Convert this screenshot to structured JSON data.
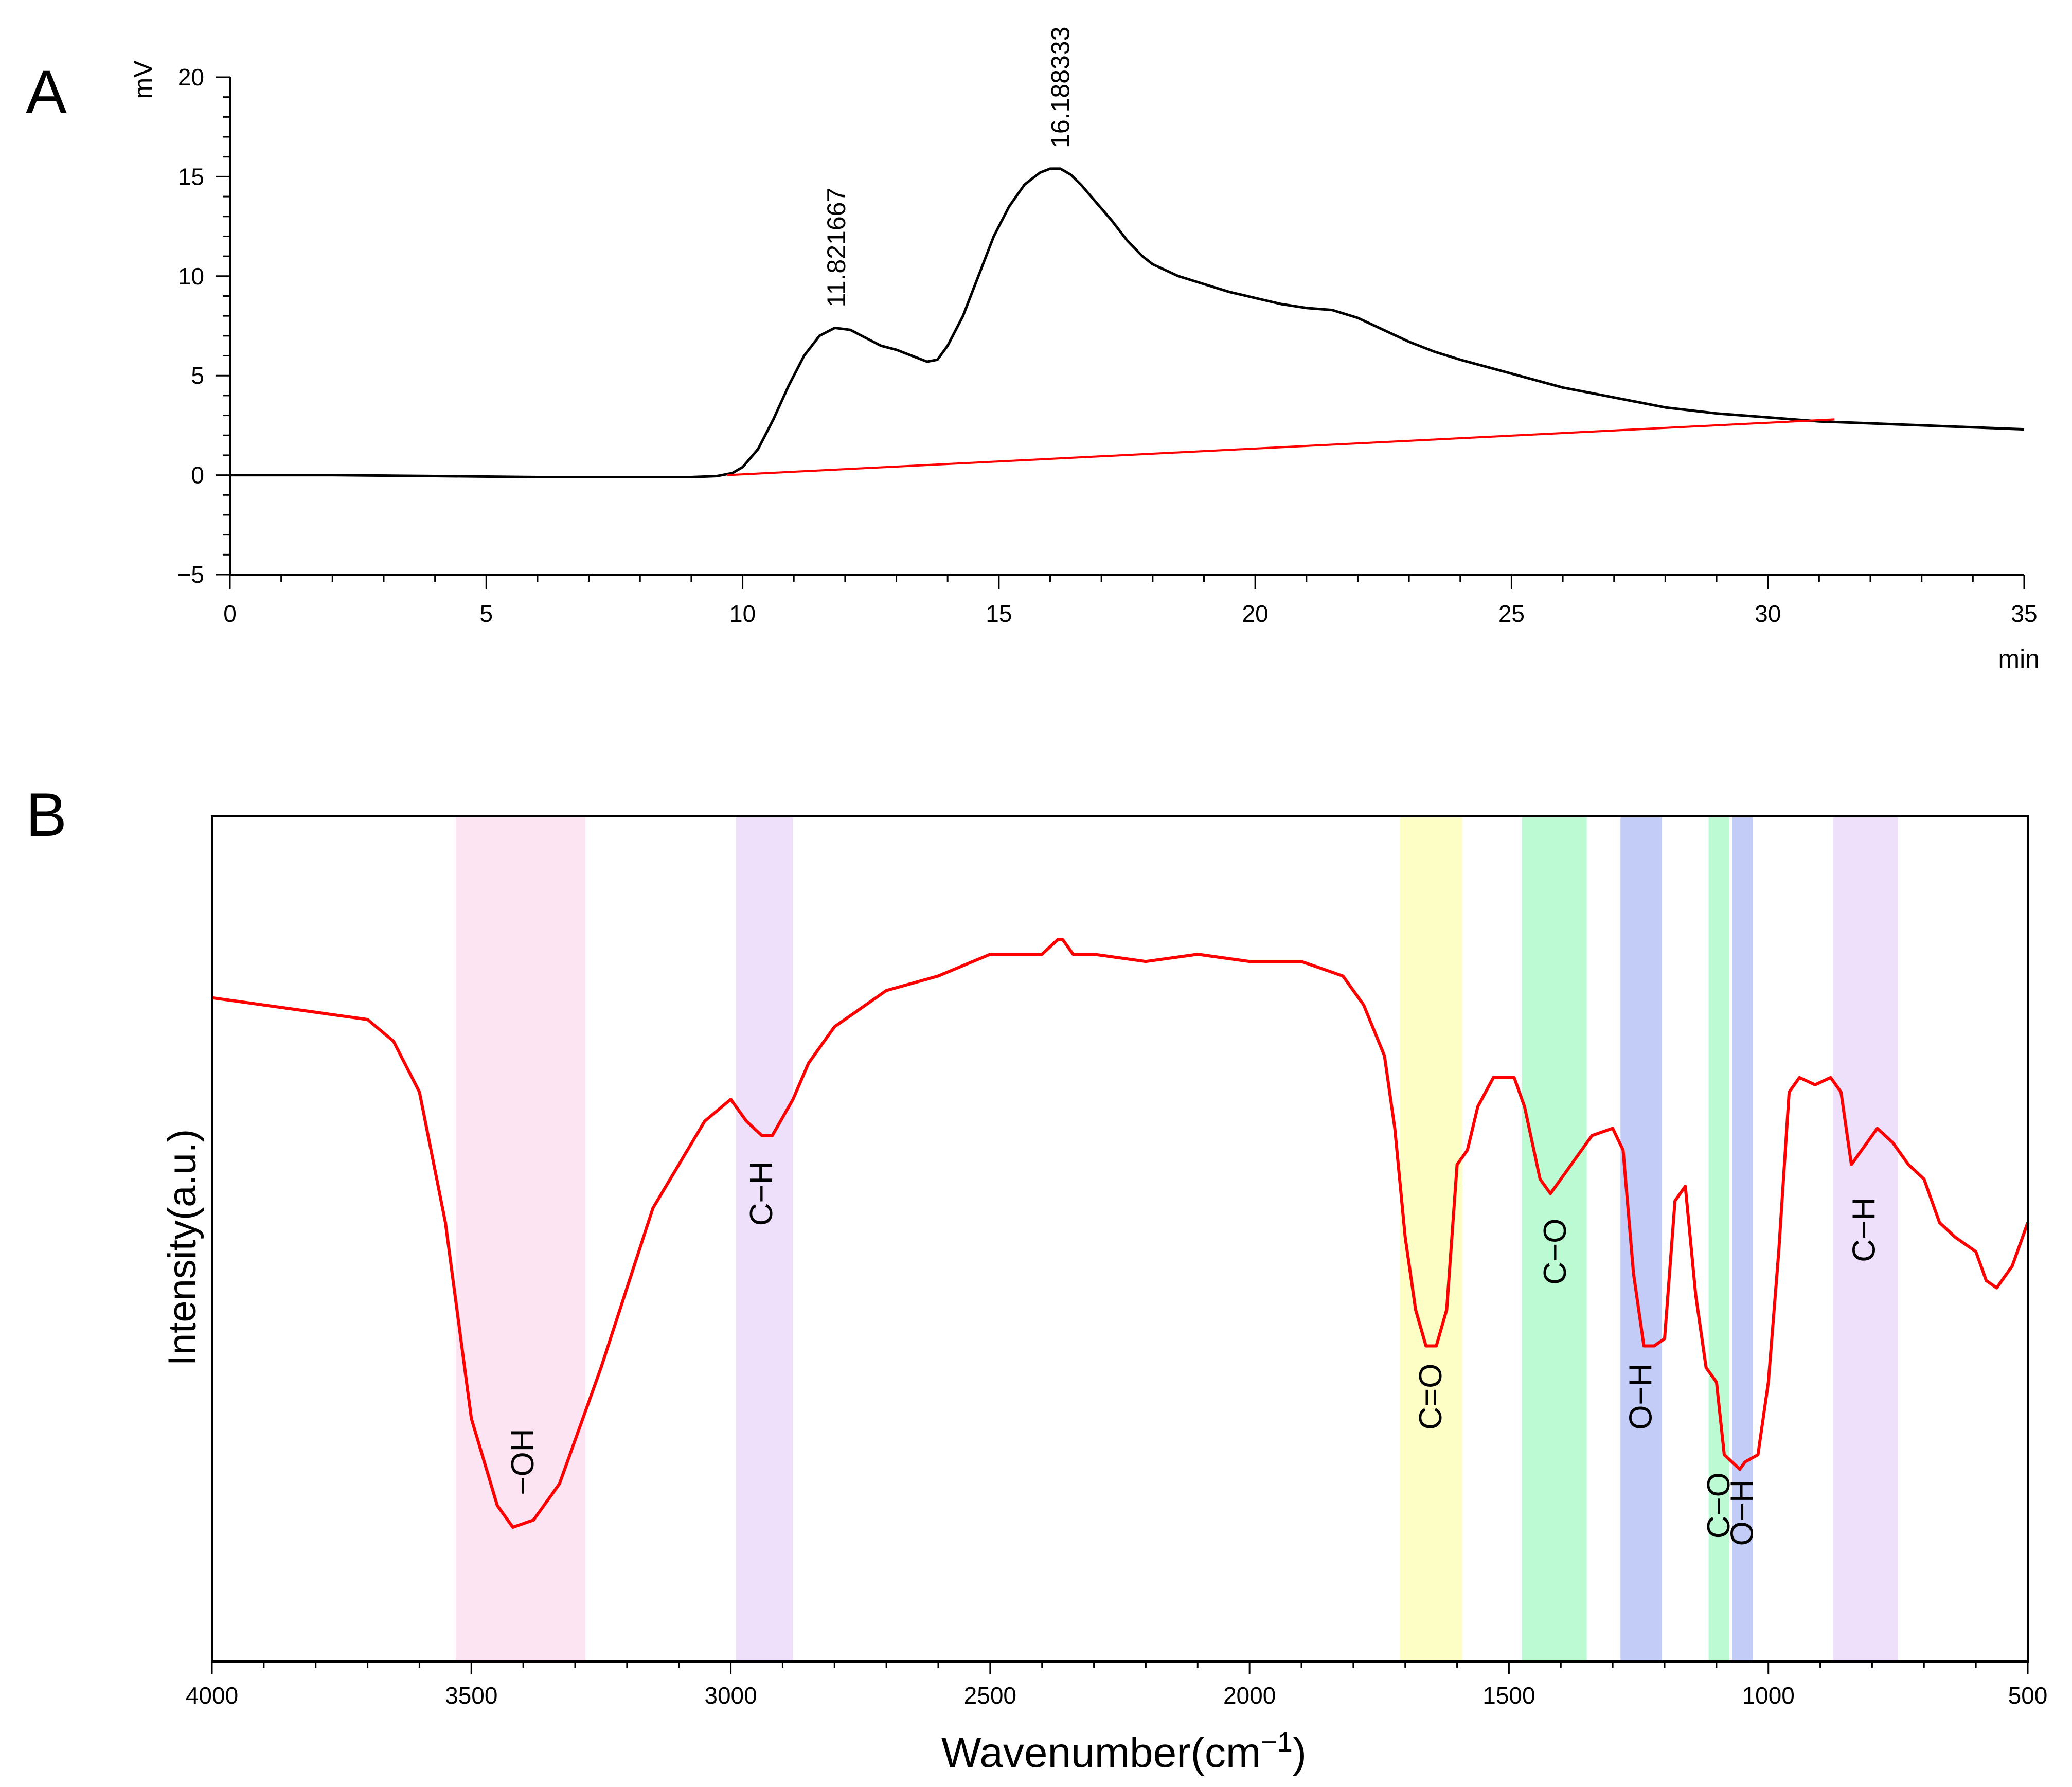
{
  "colors": {
    "axis": "#000000",
    "trace_a": "#000000",
    "baseline_a": "#ff0000",
    "trace_b": "#ff0000",
    "band_pink": "#fce4f3",
    "band_lavender": "#eedffb",
    "band_yellow": "#fdfdc6",
    "band_green": "#bcfad3",
    "band_blue": "#c3cbf7"
  },
  "chart_data": [
    {
      "panel": "A",
      "type": "line",
      "panel_label": "A",
      "title": "",
      "xlabel": "min",
      "ylabel": "mV",
      "xlim": [
        0,
        35
      ],
      "ylim": [
        -5,
        20
      ],
      "x_ticks": [
        0,
        5,
        10,
        15,
        20,
        25,
        30,
        35
      ],
      "x_tick_labels": [
        "0",
        "5",
        "10",
        "15",
        "20",
        "25",
        "30",
        "35"
      ],
      "y_ticks": [
        -5,
        0,
        5,
        10,
        15,
        20
      ],
      "y_tick_labels": [
        "−5",
        "0",
        "5",
        "10",
        "15",
        "20"
      ],
      "series": [
        {
          "name": "chromatogram",
          "color": "#000000",
          "x": [
            0,
            2,
            4,
            6,
            8,
            9,
            9.5,
            9.8,
            10,
            10.3,
            10.6,
            10.9,
            11.2,
            11.5,
            11.8,
            12.1,
            12.4,
            12.7,
            13,
            13.3,
            13.6,
            13.8,
            14,
            14.3,
            14.6,
            14.9,
            15.2,
            15.5,
            15.8,
            16,
            16.2,
            16.4,
            16.6,
            16.9,
            17.2,
            17.5,
            17.8,
            18,
            18.5,
            19,
            19.5,
            20,
            20.5,
            21,
            21.5,
            22,
            22.5,
            23,
            23.5,
            24,
            25,
            26,
            27,
            28,
            29,
            30,
            31,
            32,
            33,
            34,
            35
          ],
          "y": [
            0.0,
            0.0,
            -0.05,
            -0.1,
            -0.1,
            -0.1,
            -0.05,
            0.1,
            0.4,
            1.3,
            2.8,
            4.5,
            6.0,
            7.0,
            7.4,
            7.3,
            6.9,
            6.5,
            6.3,
            6.0,
            5.7,
            5.8,
            6.5,
            8.0,
            10.0,
            12.0,
            13.5,
            14.6,
            15.2,
            15.4,
            15.4,
            15.1,
            14.6,
            13.7,
            12.8,
            11.8,
            11.0,
            10.6,
            10.0,
            9.6,
            9.2,
            8.9,
            8.6,
            8.4,
            8.3,
            7.9,
            7.3,
            6.7,
            6.2,
            5.8,
            5.1,
            4.4,
            3.9,
            3.4,
            3.1,
            2.9,
            2.7,
            2.6,
            2.5,
            2.4,
            2.3
          ]
        },
        {
          "name": "baseline",
          "color": "#ff0000",
          "x": [
            9.7,
            31.3
          ],
          "y": [
            0.0,
            2.8
          ]
        }
      ],
      "annotations": [
        {
          "text": "11.821667",
          "x": 11.82,
          "y": 7.4
        },
        {
          "text": "16.188333",
          "x": 16.19,
          "y": 15.4
        }
      ]
    },
    {
      "panel": "B",
      "type": "line",
      "panel_label": "B",
      "title": "",
      "xlabel": "Wavenumber(cm",
      "xlabel_superscript": "−1",
      "xlabel_suffix": ")",
      "ylabel": "Intensity(a.u.)",
      "xlim": [
        4000,
        500
      ],
      "ylim": [
        0,
        100
      ],
      "x_ticks": [
        4000,
        3500,
        3000,
        2500,
        2000,
        1500,
        1000,
        500
      ],
      "x_tick_labels": [
        "4000",
        "3500",
        "3000",
        "2500",
        "2000",
        "1500",
        "1000",
        "500"
      ],
      "series": [
        {
          "name": "FT-IR spectrum",
          "color": "#ff0000",
          "x": [
            4000,
            3900,
            3800,
            3700,
            3650,
            3600,
            3550,
            3500,
            3450,
            3420,
            3380,
            3330,
            3250,
            3150,
            3050,
            3000,
            2970,
            2940,
            2920,
            2880,
            2850,
            2800,
            2700,
            2600,
            2500,
            2400,
            2370,
            2360,
            2340,
            2300,
            2200,
            2100,
            2000,
            1900,
            1820,
            1780,
            1740,
            1720,
            1700,
            1680,
            1660,
            1640,
            1620,
            1600,
            1580,
            1560,
            1530,
            1500,
            1490,
            1470,
            1440,
            1420,
            1400,
            1380,
            1340,
            1300,
            1280,
            1260,
            1240,
            1220,
            1200,
            1180,
            1160,
            1140,
            1120,
            1100,
            1085,
            1070,
            1055,
            1045,
            1020,
            1000,
            980,
            960,
            940,
            910,
            880,
            860,
            840,
            820,
            790,
            760,
            730,
            700,
            670,
            640,
            600,
            580,
            560,
            530,
            500
          ],
          "y": [
            83,
            82,
            81,
            80,
            77,
            70,
            52,
            25,
            13,
            10,
            11,
            16,
            32,
            54,
            66,
            69,
            66,
            64,
            64,
            69,
            74,
            79,
            84,
            86,
            89,
            89,
            91,
            91,
            89,
            89,
            88,
            89,
            88,
            88,
            86,
            82,
            75,
            65,
            50,
            40,
            35,
            35,
            40,
            60,
            62,
            68,
            72,
            72,
            72,
            68,
            58,
            56,
            58,
            60,
            64,
            65,
            62,
            45,
            35,
            35,
            36,
            55,
            57,
            42,
            32,
            30,
            20,
            19,
            18,
            19,
            20,
            30,
            48,
            70,
            72,
            71,
            72,
            70,
            60,
            62,
            65,
            63,
            60,
            58,
            52,
            50,
            48,
            44,
            43,
            46,
            52
          ]
        }
      ],
      "bands": [
        {
          "label": "−OH",
          "from": 3530,
          "to": 3280,
          "color": "#fce4f3",
          "label_x": 3400,
          "label_y": 19
        },
        {
          "label": "C−H",
          "from": 2990,
          "to": 2880,
          "color": "#eedffb",
          "label_x": 2940,
          "label_y": 56
        },
        {
          "label": "C=O",
          "from": 1710,
          "to": 1590,
          "color": "#fdfdc6",
          "label_x": 1650,
          "label_y": 28
        },
        {
          "label": "C−O",
          "from": 1475,
          "to": 1350,
          "color": "#bcfad3",
          "label_x": 1410,
          "label_y": 48
        },
        {
          "label": "O−H",
          "from": 1285,
          "to": 1205,
          "color": "#c3cbf7",
          "label_x": 1245,
          "label_y": 28
        },
        {
          "label": "C−O",
          "from": 1115,
          "to": 1075,
          "color": "#bcfad3",
          "label_x": 1095,
          "label_y": 13
        },
        {
          "label": "O−H",
          "from": 1070,
          "to": 1030,
          "color": "#c3cbf7",
          "label_x": 1050,
          "label_y": 12
        },
        {
          "label": "C−H",
          "from": 875,
          "to": 750,
          "color": "#eedffb",
          "label_x": 815,
          "label_y": 51
        }
      ]
    }
  ]
}
